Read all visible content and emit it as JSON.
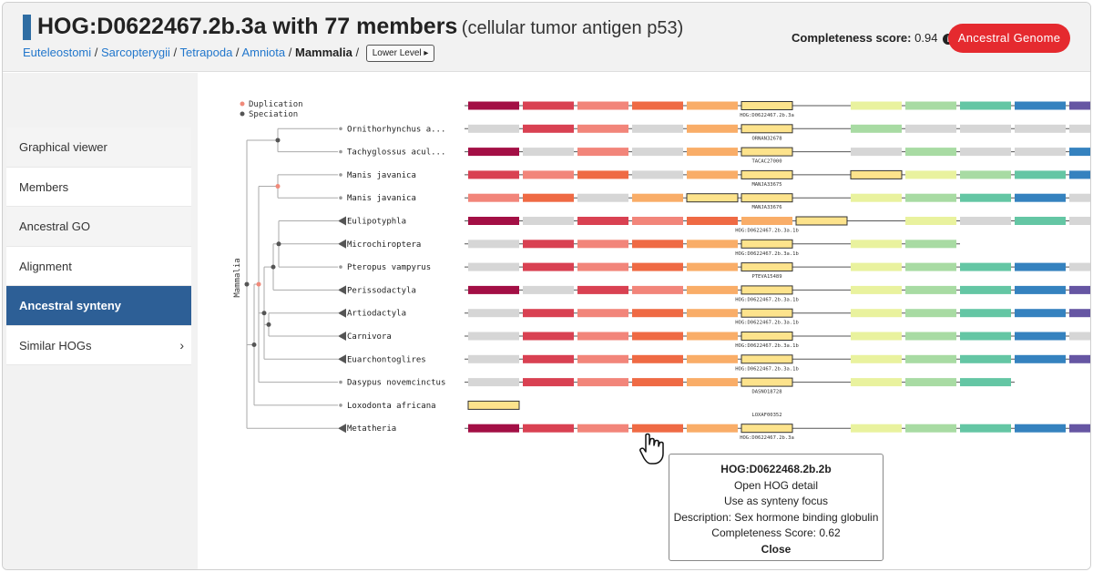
{
  "header": {
    "hog_id": "HOG:D0622467.2b.3a with 77 members",
    "protein": "(cellular tumor antigen p53)",
    "breadcrumbs": [
      "Euteleostomi",
      "Sarcopterygii",
      "Tetrapoda",
      "Amniota"
    ],
    "current_level": "Mammalia",
    "lower_level_label": "Lower Level ▸",
    "completeness_label": "Completeness score:",
    "completeness_value": "0.94",
    "ancestral_genome_label": "Ancestral Genome"
  },
  "menu": {
    "items": [
      {
        "label": "Graphical viewer"
      },
      {
        "label": "Members"
      },
      {
        "label": "Ancestral GO"
      },
      {
        "label": "Alignment"
      },
      {
        "label": "Ancestral synteny"
      },
      {
        "label": "Similar HOGs"
      }
    ],
    "active_index": 4
  },
  "legend": {
    "duplication": "Duplication",
    "speciation": "Speciation",
    "duplication_color": "#f08a7a",
    "speciation_color": "#555555"
  },
  "tree": {
    "clade_label": "Mammalia",
    "leaves": [
      "Ornithorhynchus a...",
      "Tachyglossus acul...",
      "Manis javanica",
      "Manis javanica",
      "Eulipotyphla",
      "Microchiroptera",
      "Pteropus vampyrus",
      "Perissodactyla",
      "Artiodactyla",
      "Carnivora",
      "Euarchontoglires",
      "Dasypus novemcinctus",
      "Loxodonta africana",
      "Metatheria"
    ],
    "collapsed": [
      false,
      false,
      false,
      false,
      true,
      true,
      false,
      true,
      true,
      true,
      true,
      false,
      false,
      true
    ]
  },
  "palette": {
    "n": "#a30f45",
    "r": "#d94152",
    "s": "#f2857a",
    "o": "#ef6a44",
    "p": "#f9ad68",
    "h": "#fde38c",
    "y": "#e9f29e",
    "g": "#a8dba3",
    "t": "#64c6a4",
    "b": "#3582bf",
    "v": "#6656a3",
    "x": "#d6d6d6"
  },
  "synteny": {
    "rows": [
      {
        "cells": "nrsoph ygtbv",
        "label": "HOG:D0622467.2b.3a",
        "tail": true
      },
      {
        "cells": "xrsxph gxxxx",
        "label": "ORNAN32678",
        "tail": true
      },
      {
        "cells": "nxsxph xgxxb",
        "label": "TACAC27000",
        "tail": true
      },
      {
        "cells": "rsoxph hygtb",
        "label": "MANJA33675",
        "tail": true
      },
      {
        "cells": "soxphh ygtbx",
        "label": "MANJA33676",
        "tail": false
      },
      {
        "cells": "nxrsoph yxtx",
        "label": "HOG:D0622467.2b.3a.1b",
        "tail": false
      },
      {
        "cells": "xrsoph yg",
        "label": "HOG:D0622467.2b.3a.1b",
        "tail": false
      },
      {
        "cells": "xrsoph ygtbx",
        "label": "PTEVA15489",
        "tail": true
      },
      {
        "cells": "nxrsph ygtbv",
        "label": "HOG:D0622467.2b.3a.1b",
        "tail": true
      },
      {
        "cells": "xrsoph ygtbv",
        "label": "HOG:D0622467.2b.3a.1b",
        "tail": true
      },
      {
        "cells": "xrsoph ygtbx",
        "label": "HOG:D0622467.2b.3a.1b",
        "tail": true
      },
      {
        "cells": "xrsoph ygtbv",
        "label": "HOG:D0622467.2b.3a.1b",
        "tail": true
      },
      {
        "cells": "xrsoph ygt",
        "label": "DASNO18728",
        "tail": false
      },
      {
        "cells": "h",
        "label": "LOXAF00352",
        "tail": false
      },
      {
        "cells": "nrsoph ygtbv",
        "label": "HOG:D0622467.2b.3a",
        "tail": true
      }
    ]
  },
  "tooltip": {
    "title": "HOG:D0622468.2b.2b",
    "open": "Open HOG detail",
    "focus": "Use as synteny focus",
    "description": "Description: Sex hormone binding globulin",
    "score": "Completeness Score: 0.62",
    "close": "Close"
  }
}
